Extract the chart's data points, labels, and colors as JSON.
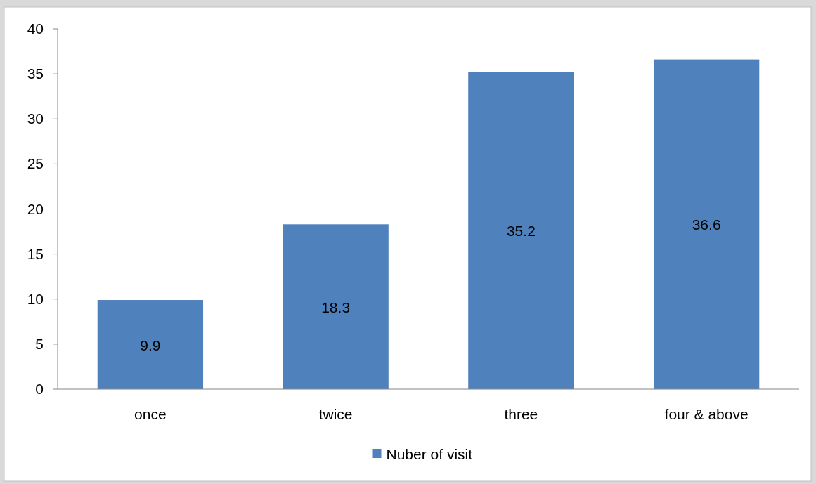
{
  "chart_data": {
    "type": "bar",
    "categories": [
      "once",
      "twice",
      "three",
      "four & above"
    ],
    "series": [
      {
        "name": "Nuber of visit",
        "color": "#4f81bd",
        "values": [
          9.9,
          18.3,
          35.2,
          36.6
        ]
      }
    ],
    "ylim": [
      0,
      40
    ],
    "yticks": [
      0,
      5,
      10,
      15,
      20,
      25,
      30,
      35,
      40
    ],
    "grid": false,
    "legend": "bottom",
    "data_labels": true
  }
}
